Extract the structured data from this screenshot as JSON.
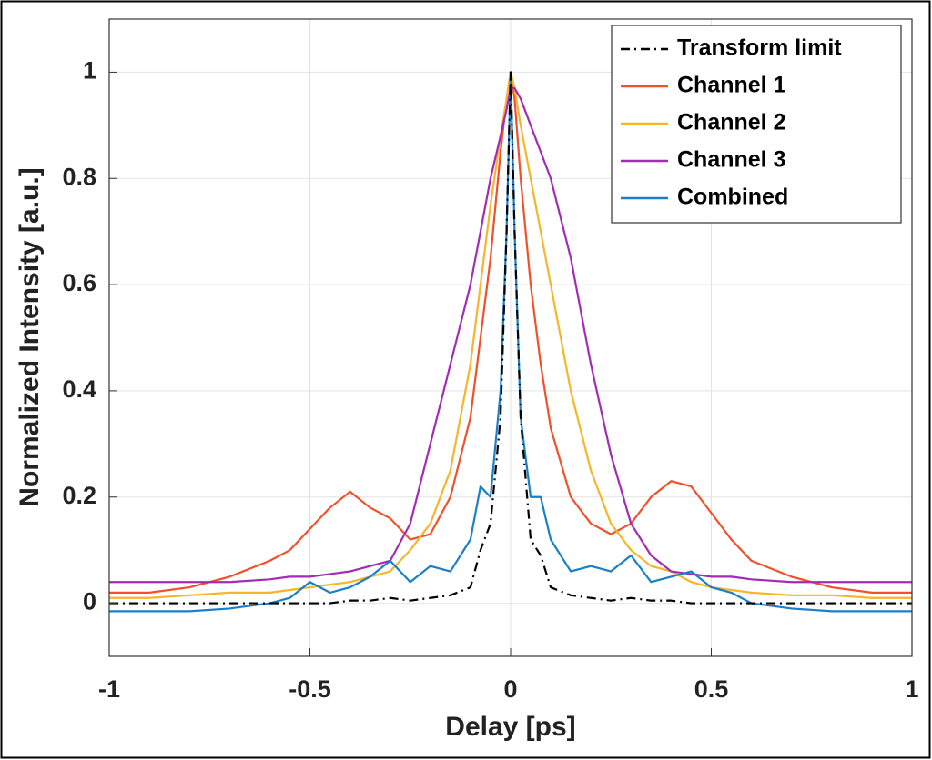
{
  "chart_data": {
    "type": "line",
    "x_label": "Delay [ps]",
    "y_label": "Normalized Intensity [a.u.]",
    "x": [
      -1,
      -0.9,
      -0.8,
      -0.7,
      -0.6,
      -0.55,
      -0.5,
      -0.45,
      -0.4,
      -0.35,
      -0.3,
      -0.25,
      -0.2,
      -0.15,
      -0.1,
      -0.075,
      -0.05,
      -0.025,
      -0.01,
      0,
      0.01,
      0.025,
      0.05,
      0.075,
      0.1,
      0.15,
      0.2,
      0.25,
      0.3,
      0.35,
      0.4,
      0.45,
      0.5,
      0.55,
      0.6,
      0.7,
      0.8,
      0.9,
      1
    ],
    "series": [
      {
        "name": "Transform limit",
        "color": "#000000",
        "line_style": "dashdot",
        "values": [
          0,
          0,
          0,
          0,
          0,
          0,
          0,
          0,
          0.005,
          0.005,
          0.01,
          0.005,
          0.01,
          0.015,
          0.03,
          0.1,
          0.15,
          0.35,
          0.7,
          1,
          0.7,
          0.35,
          0.12,
          0.09,
          0.03,
          0.015,
          0.01,
          0.005,
          0.01,
          0.005,
          0.005,
          0,
          0,
          0,
          0,
          0,
          0,
          0,
          0
        ]
      },
      {
        "name": "Channel 1",
        "color": "#f0502a",
        "values": [
          0.02,
          0.02,
          0.03,
          0.05,
          0.08,
          0.1,
          0.14,
          0.18,
          0.21,
          0.18,
          0.16,
          0.12,
          0.13,
          0.2,
          0.35,
          0.5,
          0.65,
          0.85,
          0.95,
          1,
          0.95,
          0.8,
          0.6,
          0.45,
          0.33,
          0.2,
          0.15,
          0.13,
          0.15,
          0.2,
          0.23,
          0.22,
          0.17,
          0.12,
          0.08,
          0.05,
          0.03,
          0.02,
          0.02
        ]
      },
      {
        "name": "Channel 2",
        "color": "#f7b52a",
        "values": [
          0.01,
          0.01,
          0.015,
          0.02,
          0.02,
          0.025,
          0.03,
          0.035,
          0.04,
          0.05,
          0.06,
          0.1,
          0.15,
          0.25,
          0.45,
          0.6,
          0.75,
          0.88,
          0.95,
          1,
          0.97,
          0.9,
          0.8,
          0.7,
          0.6,
          0.4,
          0.25,
          0.15,
          0.1,
          0.07,
          0.06,
          0.04,
          0.03,
          0.025,
          0.02,
          0.015,
          0.015,
          0.01,
          0.01
        ]
      },
      {
        "name": "Channel 3",
        "color": "#a22cb4",
        "values": [
          0.04,
          0.04,
          0.04,
          0.04,
          0.045,
          0.05,
          0.05,
          0.055,
          0.06,
          0.07,
          0.08,
          0.15,
          0.3,
          0.45,
          0.6,
          0.7,
          0.8,
          0.88,
          0.93,
          0.97,
          0.97,
          0.95,
          0.9,
          0.85,
          0.8,
          0.65,
          0.45,
          0.28,
          0.15,
          0.09,
          0.06,
          0.055,
          0.05,
          0.05,
          0.045,
          0.04,
          0.04,
          0.04,
          0.04
        ]
      },
      {
        "name": "Combined",
        "color": "#1b7fc6",
        "values": [
          -0.015,
          -0.015,
          -0.015,
          -0.01,
          0,
          0.01,
          0.04,
          0.02,
          0.03,
          0.05,
          0.08,
          0.04,
          0.07,
          0.06,
          0.12,
          0.22,
          0.2,
          0.4,
          0.7,
          1,
          0.7,
          0.35,
          0.2,
          0.2,
          0.12,
          0.06,
          0.07,
          0.06,
          0.09,
          0.04,
          0.05,
          0.06,
          0.03,
          0.02,
          0,
          -0.01,
          -0.015,
          -0.015,
          -0.015
        ]
      }
    ],
    "xlim": [
      -1,
      1
    ],
    "xticks": [
      -1,
      -0.5,
      0,
      0.5,
      1
    ],
    "ylim": [
      -0.1,
      1.1
    ],
    "yticks": [
      0,
      0.2,
      0.4,
      0.6,
      0.8,
      1
    ],
    "grid": true,
    "legend": "top-right"
  }
}
